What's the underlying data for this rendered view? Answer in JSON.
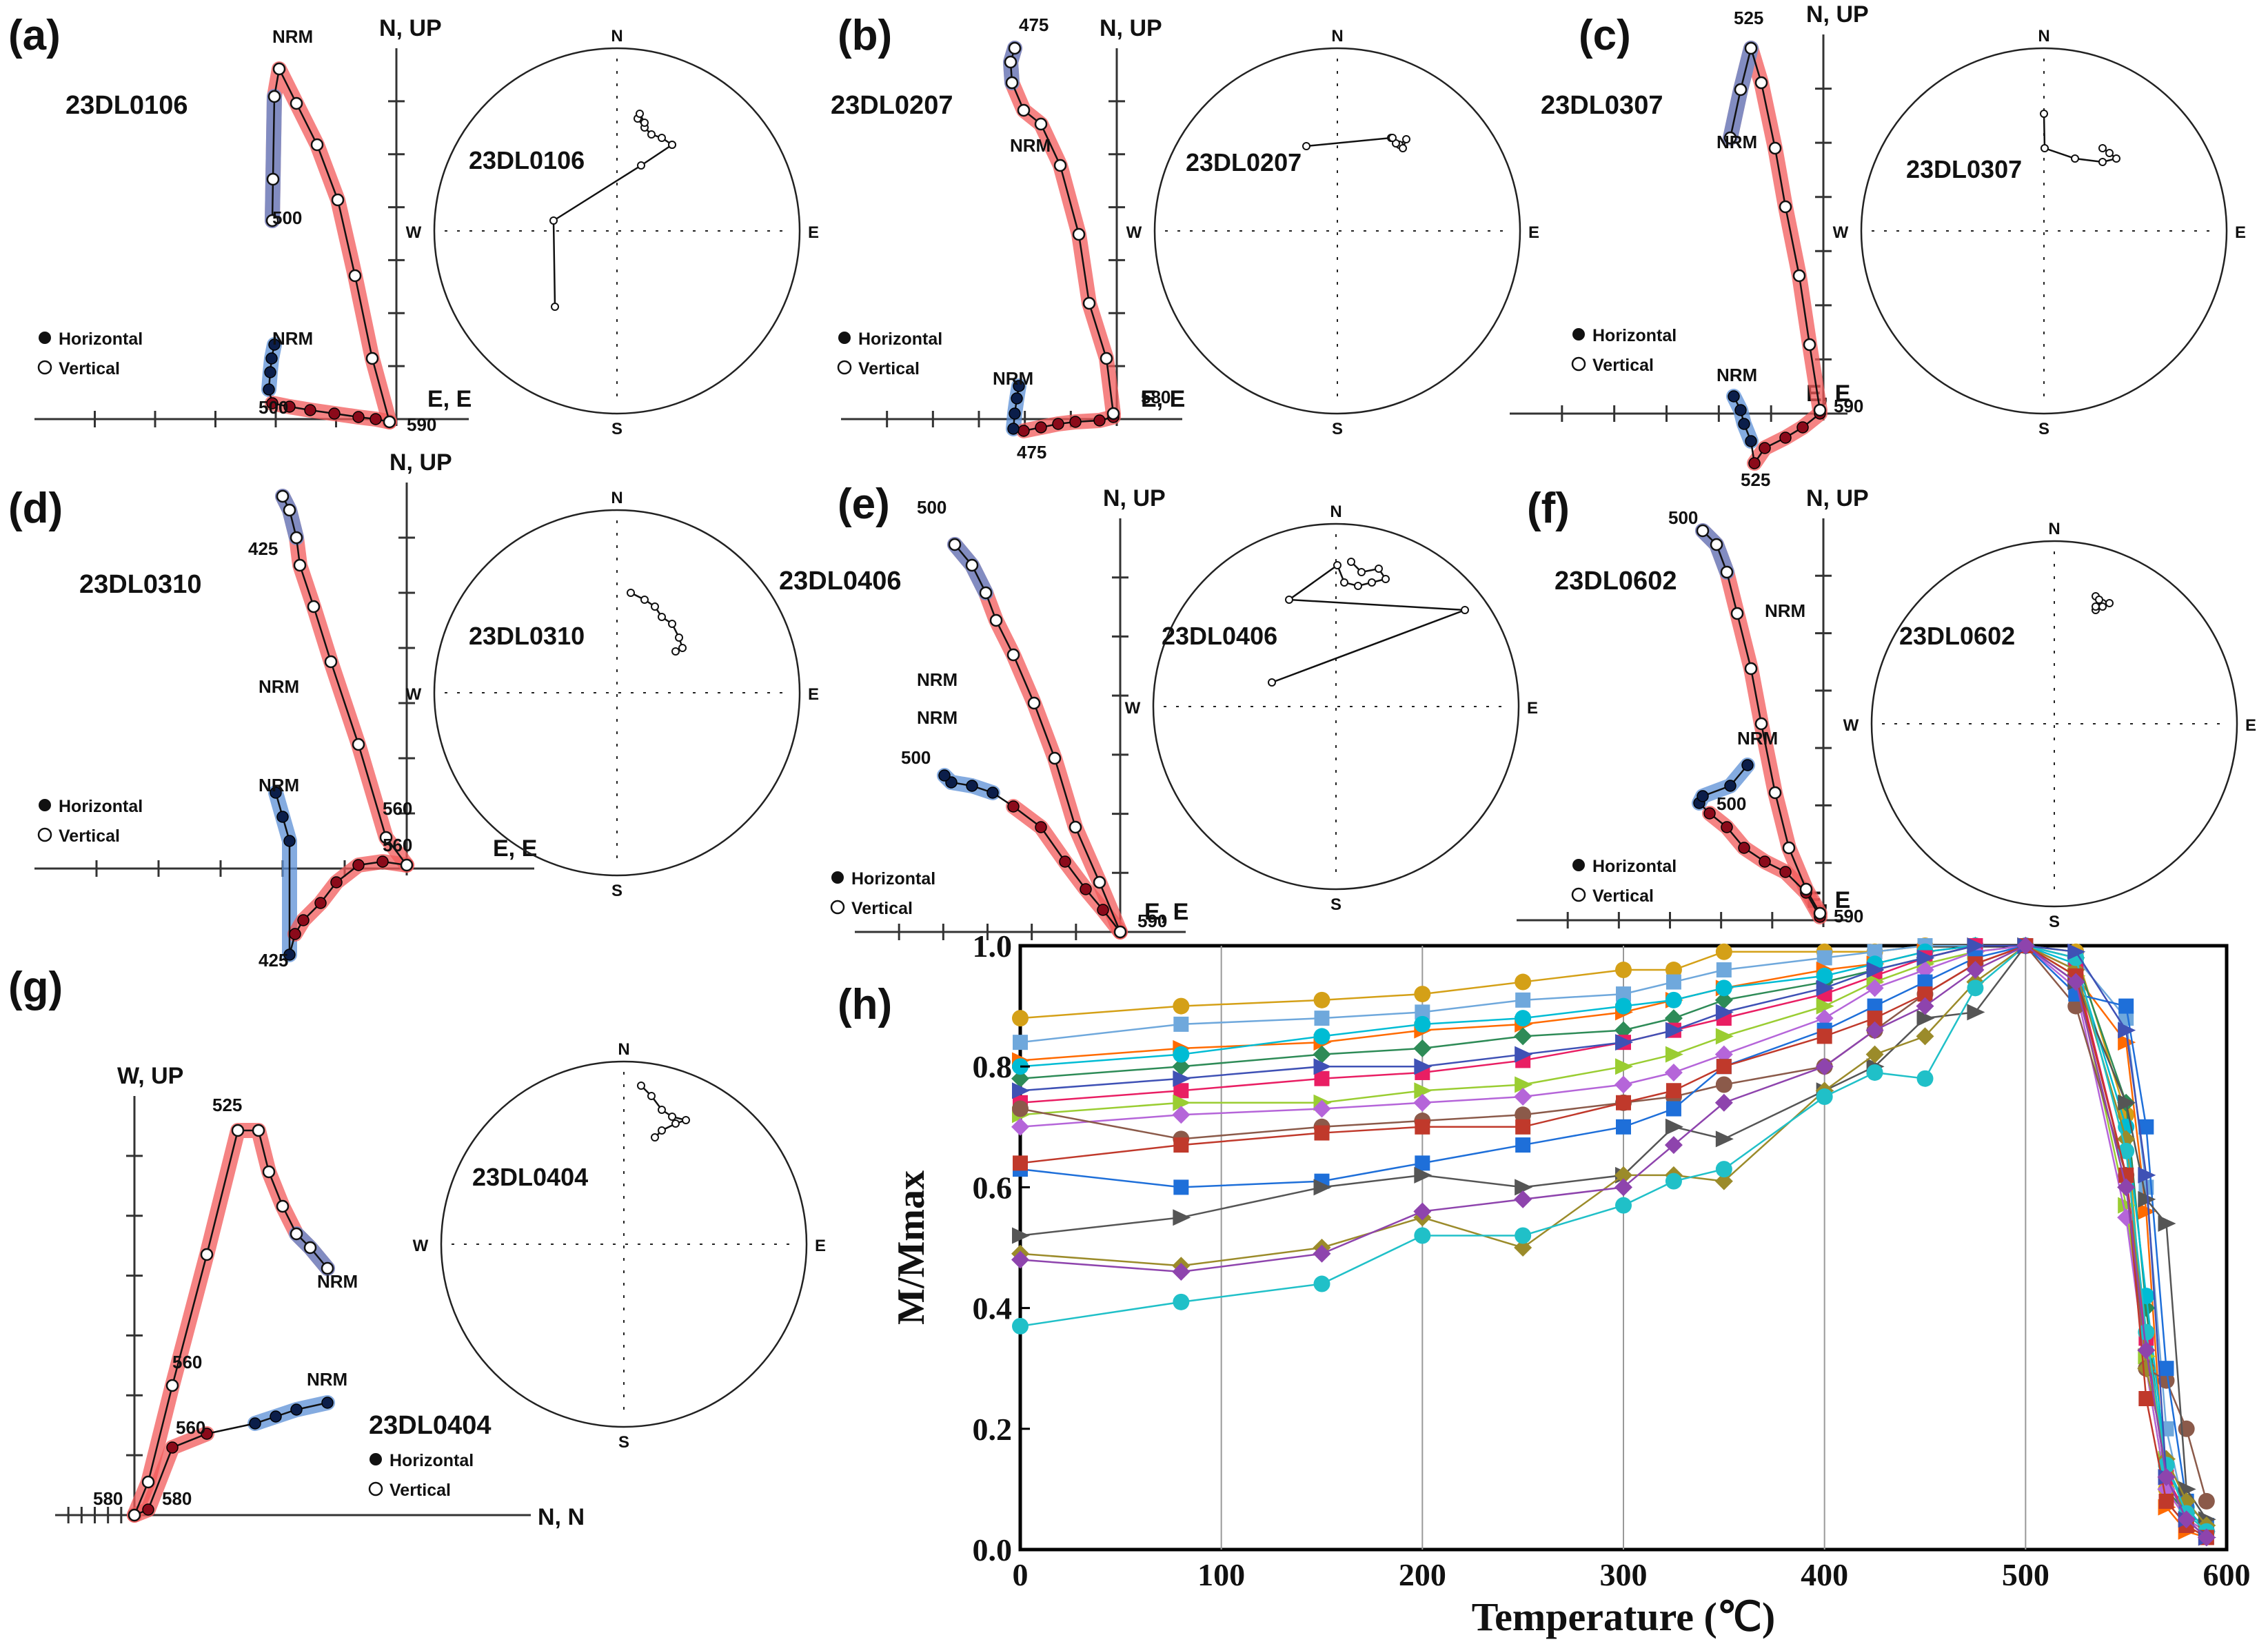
{
  "panels": [
    {
      "letter": "(a)",
      "sample": "23DL0106",
      "ax_up": "N, UP",
      "ax_right": "E, E",
      "leg_h": "Horizontal",
      "leg_v": "Vertical",
      "h_labels": [
        "NRM",
        "500"
      ],
      "v_labels": [
        "500",
        "NRM"
      ],
      "end_label": "590",
      "stereo": {
        "N": "N",
        "S": "S",
        "E": "E",
        "W": "W",
        "label": "23DL0106"
      }
    },
    {
      "letter": "(b)",
      "sample": "23DL0207",
      "ax_up": "N, UP",
      "ax_right": "E, E",
      "leg_h": "Horizontal",
      "leg_v": "Vertical",
      "h_labels": [
        "NRM",
        "475"
      ],
      "v_labels": [
        "475",
        "NRM"
      ],
      "end_label": "580",
      "stereo": {
        "N": "N",
        "S": "S",
        "E": "E",
        "W": "W",
        "label": "23DL0207"
      }
    },
    {
      "letter": "(c)",
      "sample": "23DL0307",
      "ax_up": "N, UP",
      "ax_right": "E, E",
      "leg_h": "Horizontal",
      "leg_v": "Vertical",
      "h_labels": [
        "NRM",
        "525"
      ],
      "v_labels": [
        "525",
        "NRM"
      ],
      "end_label": "590",
      "stereo": {
        "N": "N",
        "S": "S",
        "E": "E",
        "W": "W",
        "label": "23DL0307"
      }
    },
    {
      "letter": "(d)",
      "sample": "23DL0310",
      "ax_up": "N, UP",
      "ax_right": "E, E",
      "leg_h": "Horizontal",
      "leg_v": "Vertical",
      "h_labels": [
        "NRM",
        "425"
      ],
      "v_labels": [
        "425",
        "NRM"
      ],
      "end_label": "560",
      "end_label2": "560",
      "stereo": {
        "N": "N",
        "S": "S",
        "E": "E",
        "W": "W",
        "label": "23DL0310"
      }
    },
    {
      "letter": "(e)",
      "sample": "23DL0406",
      "ax_up": "N, UP",
      "ax_right": "E, E",
      "leg_h": "Horizontal",
      "leg_v": "Vertical",
      "h_labels": [
        "NRM",
        "500"
      ],
      "v_labels": [
        "500",
        "NRM"
      ],
      "end_label": "590",
      "stereo": {
        "N": "N",
        "S": "S",
        "E": "E",
        "W": "W",
        "label": "23DL0406"
      }
    },
    {
      "letter": "(f)",
      "sample": "23DL0602",
      "ax_up": "N, UP",
      "ax_right": "E, E",
      "leg_h": "Horizontal",
      "leg_v": "Vertical",
      "h_labels": [
        "NRM",
        "500"
      ],
      "v_labels": [
        "500",
        "NRM"
      ],
      "end_label": "590",
      "stereo": {
        "N": "N",
        "S": "S",
        "E": "E",
        "W": "W",
        "label": "23DL0602"
      }
    },
    {
      "letter": "(g)",
      "sample": "23DL0404",
      "ax_up": "W, UP",
      "ax_right": "N, N",
      "leg_h": "Horizontal",
      "leg_v": "Vertical",
      "h_labels": [
        "NRM",
        "560",
        "580"
      ],
      "v_labels": [
        "525",
        "560",
        "NRM",
        "580"
      ],
      "stereo": {
        "N": "N",
        "S": "S",
        "E": "E",
        "W": "W",
        "label": "23DL0404"
      }
    }
  ],
  "chart_data": {
    "type": "line",
    "panel": "(h)",
    "xlabel": "Temperature (℃)",
    "ylabel": "M/Mmax",
    "xlim": [
      0,
      600
    ],
    "ylim": [
      0.0,
      1.0
    ],
    "xticks": [
      0,
      100,
      200,
      300,
      400,
      500,
      600
    ],
    "yticks": [
      "0.0",
      "0.2",
      "0.4",
      "0.6",
      "0.8",
      "1.0"
    ],
    "x": [
      0,
      80,
      150,
      200,
      250,
      300,
      325,
      350,
      400,
      425,
      450,
      475,
      500,
      525,
      550,
      560,
      570,
      580,
      590
    ],
    "series": [
      {
        "color": "#d4a017",
        "values": [
          0.88,
          0.9,
          0.91,
          0.92,
          0.94,
          0.96,
          0.96,
          0.99,
          0.99,
          0.99,
          1.0,
          1.0,
          1.0,
          0.99,
          0.72,
          0.3,
          0.1,
          0.05,
          0.03
        ]
      },
      {
        "color": "#6fa8dc",
        "values": [
          0.84,
          0.87,
          0.88,
          0.89,
          0.91,
          0.92,
          0.94,
          0.96,
          0.98,
          0.99,
          1.0,
          1.0,
          1.0,
          0.98,
          0.88,
          0.6,
          0.2,
          0.05,
          0.02
        ]
      },
      {
        "color": "#ff6a00",
        "values": [
          0.81,
          0.83,
          0.84,
          0.86,
          0.87,
          0.89,
          0.91,
          0.93,
          0.96,
          0.97,
          0.99,
          1.0,
          1.0,
          0.95,
          0.84,
          0.56,
          0.07,
          0.03,
          0.02
        ]
      },
      {
        "color": "#2e8b57",
        "values": [
          0.78,
          0.8,
          0.82,
          0.83,
          0.85,
          0.86,
          0.88,
          0.91,
          0.94,
          0.96,
          0.98,
          1.0,
          1.0,
          0.98,
          0.74,
          0.4,
          0.1,
          0.06,
          0.04
        ]
      },
      {
        "color": "#00bcd4",
        "values": [
          0.8,
          0.82,
          0.85,
          0.87,
          0.88,
          0.9,
          0.91,
          0.93,
          0.95,
          0.97,
          0.99,
          1.0,
          1.0,
          0.97,
          0.7,
          0.42,
          0.14,
          0.07,
          0.03
        ]
      },
      {
        "color": "#e91e63",
        "values": [
          0.74,
          0.76,
          0.78,
          0.79,
          0.81,
          0.84,
          0.86,
          0.88,
          0.92,
          0.95,
          0.98,
          1.0,
          1.0,
          0.96,
          0.62,
          0.35,
          0.12,
          0.06,
          0.03
        ]
      },
      {
        "color": "#9acd32",
        "values": [
          0.72,
          0.74,
          0.74,
          0.76,
          0.77,
          0.8,
          0.82,
          0.85,
          0.9,
          0.94,
          0.97,
          0.99,
          1.0,
          0.95,
          0.57,
          0.32,
          0.15,
          0.08,
          0.04
        ]
      },
      {
        "color": "#b565d9",
        "values": [
          0.7,
          0.72,
          0.73,
          0.74,
          0.75,
          0.77,
          0.79,
          0.82,
          0.88,
          0.93,
          0.96,
          0.99,
          1.0,
          0.93,
          0.55,
          0.3,
          0.1,
          0.05,
          0.03
        ]
      },
      {
        "color": "#8b5a4a",
        "values": [
          0.73,
          0.68,
          0.7,
          0.71,
          0.72,
          0.74,
          0.75,
          0.77,
          0.8,
          0.86,
          0.92,
          0.97,
          1.0,
          0.9,
          0.62,
          0.3,
          0.28,
          0.2,
          0.08
        ]
      },
      {
        "color": "#1e6fd9",
        "values": [
          0.63,
          0.6,
          0.61,
          0.64,
          0.67,
          0.7,
          0.73,
          0.8,
          0.86,
          0.9,
          0.94,
          0.98,
          1.0,
          0.92,
          0.9,
          0.7,
          0.3,
          0.08,
          0.04
        ]
      },
      {
        "color": "#555555",
        "values": [
          0.52,
          0.55,
          0.6,
          0.62,
          0.6,
          0.62,
          0.7,
          0.68,
          0.76,
          0.8,
          0.88,
          0.89,
          1.0,
          0.94,
          0.74,
          0.58,
          0.54,
          0.1,
          0.05
        ]
      },
      {
        "color": "#9b8b2a",
        "values": [
          0.49,
          0.47,
          0.5,
          0.55,
          0.5,
          0.62,
          0.62,
          0.61,
          0.76,
          0.82,
          0.85,
          0.94,
          1.0,
          0.96,
          0.68,
          0.3,
          0.15,
          0.08,
          0.04
        ]
      },
      {
        "color": "#20c0c8",
        "values": [
          0.37,
          0.41,
          0.44,
          0.52,
          0.52,
          0.57,
          0.61,
          0.63,
          0.75,
          0.79,
          0.78,
          0.93,
          1.0,
          0.98,
          0.66,
          0.36,
          0.14,
          0.06,
          0.03
        ]
      },
      {
        "color": "#c0392b",
        "values": [
          0.64,
          0.67,
          0.69,
          0.7,
          0.7,
          0.74,
          0.76,
          0.8,
          0.85,
          0.88,
          0.92,
          0.97,
          1.0,
          0.95,
          0.62,
          0.25,
          0.08,
          0.04,
          0.02
        ]
      },
      {
        "color": "#3f51b5",
        "values": [
          0.76,
          0.78,
          0.8,
          0.8,
          0.82,
          0.84,
          0.86,
          0.89,
          0.93,
          0.96,
          0.98,
          1.0,
          1.0,
          0.99,
          0.86,
          0.62,
          0.12,
          0.05,
          0.02
        ]
      },
      {
        "color": "#8e44ad",
        "values": [
          0.48,
          0.46,
          0.49,
          0.56,
          0.58,
          0.6,
          0.67,
          0.74,
          0.8,
          0.86,
          0.9,
          0.96,
          1.0,
          0.94,
          0.6,
          0.33,
          0.12,
          0.05,
          0.02
        ]
      }
    ]
  }
}
